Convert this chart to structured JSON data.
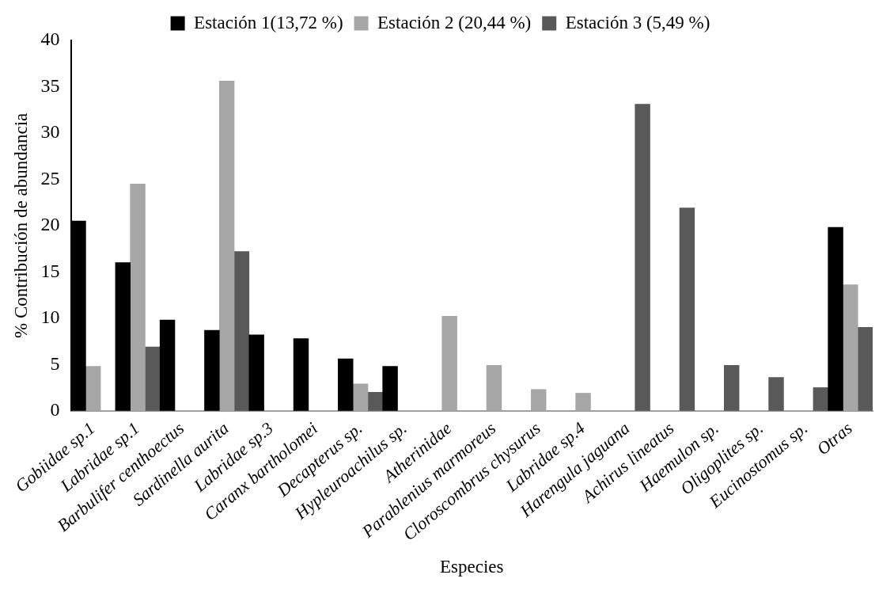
{
  "chart_data": {
    "type": "bar",
    "xlabel": "Especies",
    "ylabel": "% Contribución de abundancia",
    "categories": [
      "Gobiidae sp.1",
      "Labridae sp.1",
      "Barbulifer centhoectus",
      "Sardinella aurita",
      "Labridae sp.3",
      "Caranx bartholomei",
      "Decapterus sp.",
      "Hypleuroachilus sp.",
      "Atherinidae",
      "Parablenius marmoreus",
      "Cloroscombrus chysurus",
      "Labridae sp.4",
      "Harengula jaguana",
      "Achirus lineatus",
      "Haemulon sp.",
      "Oligoplites sp.",
      "Eucinostomus sp.",
      "Otras"
    ],
    "series": [
      {
        "name": "Estación 1(13,72 %)",
        "color": "#000000",
        "values": [
          20.5,
          16.0,
          9.8,
          8.7,
          8.2,
          7.8,
          5.6,
          4.8,
          null,
          null,
          null,
          null,
          null,
          null,
          null,
          null,
          null,
          19.8
        ]
      },
      {
        "name": "Estación 2 (20,44 %)",
        "color": "#a6a6a6",
        "values": [
          4.8,
          24.5,
          null,
          35.6,
          null,
          null,
          2.9,
          null,
          10.2,
          4.9,
          2.3,
          1.9,
          null,
          null,
          null,
          null,
          null,
          13.6
        ]
      },
      {
        "name": "Estación 3 (5,49 %)",
        "color": "#595959",
        "values": [
          null,
          6.9,
          null,
          17.2,
          null,
          null,
          2.0,
          null,
          null,
          null,
          null,
          null,
          33.1,
          21.9,
          4.9,
          3.6,
          2.5,
          9.0
        ]
      }
    ],
    "ylim": [
      0,
      40
    ],
    "yticks": [
      0,
      5,
      10,
      15,
      20,
      25,
      30,
      35,
      40
    ],
    "grid": false,
    "legend": "top"
  }
}
